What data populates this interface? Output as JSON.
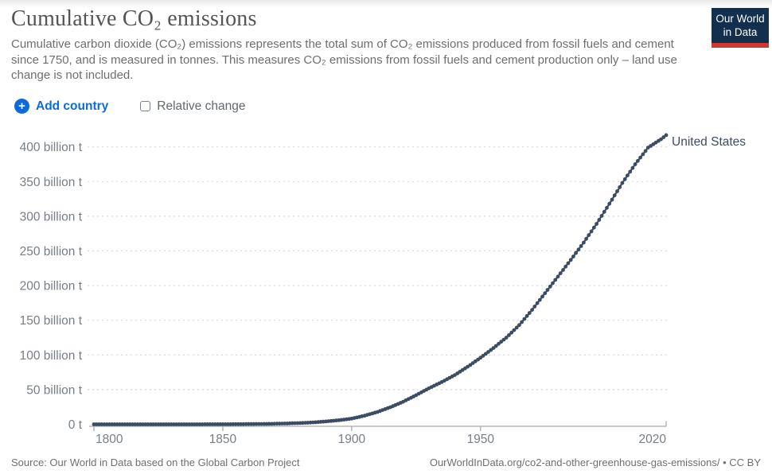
{
  "header": {
    "title": "Cumulative CO₂ emissions",
    "subtitle": "Cumulative carbon dioxide (CO₂) emissions represents the total sum of CO₂ emissions produced from fossil fuels and cement since 1750, and is measured in tonnes. This measures CO₂ emissions from fossil fuels and cement production only – land use change is not included.",
    "logo": {
      "line1": "Our World",
      "line2": "in Data",
      "bg_color": "#12304e",
      "accent_color": "#cf3a30",
      "text_color": "#ffffff"
    }
  },
  "controls": {
    "add_country_label": "Add country",
    "relative_change_label": "Relative change",
    "relative_change_checked": false,
    "accent_blue": "#0d6bd9"
  },
  "chart_data": {
    "type": "line",
    "title": "Cumulative CO₂ emissions",
    "unit": "billion tonnes of CO₂",
    "grid": true,
    "x_range": [
      1800,
      2022
    ],
    "y_range": [
      0,
      417
    ],
    "x_ticks": [
      {
        "value": 1800,
        "label": "1800"
      },
      {
        "value": 1850,
        "label": "1850"
      },
      {
        "value": 1900,
        "label": "1900"
      },
      {
        "value": 1950,
        "label": "1950"
      },
      {
        "value": 2020,
        "label": "2020"
      }
    ],
    "y_ticks": [
      {
        "value": 0,
        "label": "0 t"
      },
      {
        "value": 50,
        "label": "50 billion t"
      },
      {
        "value": 100,
        "label": "100 billion t"
      },
      {
        "value": 150,
        "label": "150 billion t"
      },
      {
        "value": 200,
        "label": "200 billion t"
      },
      {
        "value": 250,
        "label": "250 billion t"
      },
      {
        "value": 300,
        "label": "300 billion t"
      },
      {
        "value": 350,
        "label": "350 billion t"
      },
      {
        "value": 400,
        "label": "400 billion t"
      }
    ],
    "series": [
      {
        "name": "United States",
        "color": "#3b4c63",
        "points": [
          [
            1800,
            0.0003
          ],
          [
            1810,
            0.002
          ],
          [
            1820,
            0.006
          ],
          [
            1830,
            0.015
          ],
          [
            1840,
            0.04
          ],
          [
            1850,
            0.12
          ],
          [
            1855,
            0.2
          ],
          [
            1860,
            0.33
          ],
          [
            1865,
            0.5
          ],
          [
            1870,
            0.78
          ],
          [
            1875,
            1.2
          ],
          [
            1880,
            1.8
          ],
          [
            1885,
            2.7
          ],
          [
            1890,
            4.1
          ],
          [
            1895,
            5.8
          ],
          [
            1900,
            8.2
          ],
          [
            1905,
            12.4
          ],
          [
            1910,
            17.8
          ],
          [
            1915,
            24.6
          ],
          [
            1920,
            32.6
          ],
          [
            1925,
            42
          ],
          [
            1930,
            52
          ],
          [
            1935,
            61
          ],
          [
            1940,
            71
          ],
          [
            1945,
            83
          ],
          [
            1950,
            96
          ],
          [
            1955,
            110
          ],
          [
            1960,
            125
          ],
          [
            1965,
            143
          ],
          [
            1970,
            165
          ],
          [
            1975,
            189
          ],
          [
            1980,
            213
          ],
          [
            1985,
            237
          ],
          [
            1990,
            262
          ],
          [
            1995,
            289
          ],
          [
            2000,
            318
          ],
          [
            2005,
            348
          ],
          [
            2010,
            375
          ],
          [
            2015,
            399
          ],
          [
            2020,
            411
          ],
          [
            2021,
            414
          ],
          [
            2022,
            417
          ]
        ]
      }
    ],
    "colors": {
      "gridline": "#d9d9d9",
      "axis": "#a5abb1",
      "tick_label": "#777e85"
    }
  },
  "footer": {
    "source": "Source: Our World in Data based on the Global Carbon Project",
    "credit": "OurWorldInData.org/co2-and-other-greenhouse-gas-emissions/ • CC BY"
  }
}
